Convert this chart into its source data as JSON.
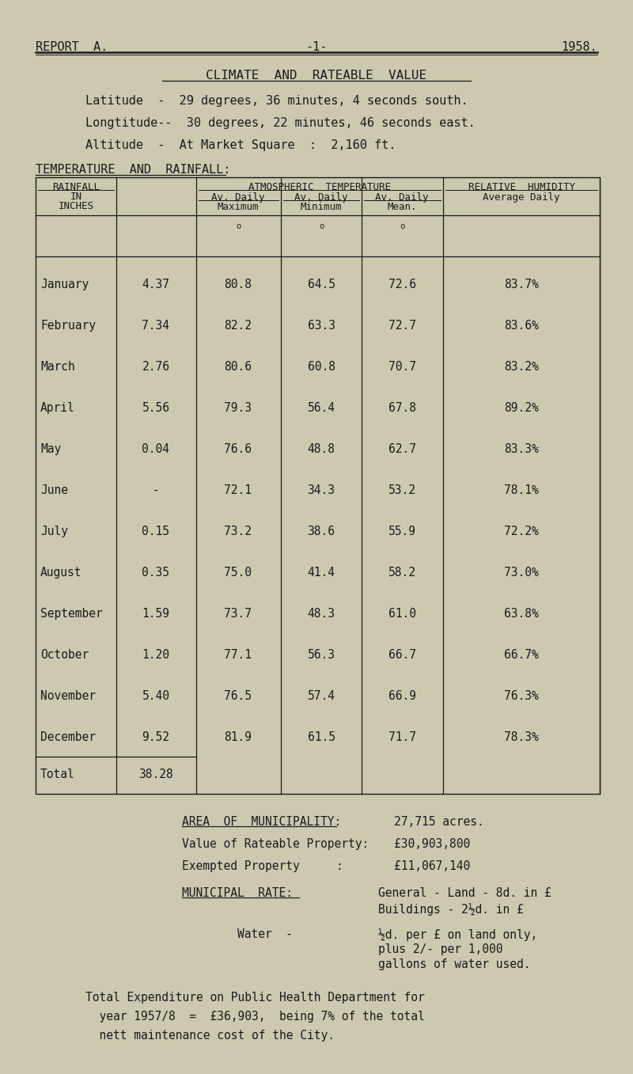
{
  "bg_color": "#ccc9b0",
  "text_color": "#1a1a1a",
  "header_left": "REPORT  A.",
  "header_center": "-1-",
  "header_right": "1958.",
  "title": "CLIMATE  AND  RATEABLE  VALUE",
  "latitude": "Latitude  -  29 degrees, 36 minutes, 4 seconds south.",
  "longitude": "Longtitude--  30 degrees, 22 minutes, 46 seconds east.",
  "altitude": "Altitude  -  At Market Square  :  2,160 ft.",
  "section_heading": "TEMPERATURE  AND  RAINFALL:",
  "months": [
    "January",
    "February",
    "March",
    "April",
    "May",
    "June",
    "July",
    "August",
    "September",
    "October",
    "November",
    "December",
    "Total"
  ],
  "rainfall": [
    "4.37",
    "7.34",
    "2.76",
    "5.56",
    "0.04",
    "-",
    "0.15",
    "0.35",
    "1.59",
    "1.20",
    "5.40",
    "9.52",
    "38.28"
  ],
  "av_max": [
    "80.8",
    "82.2",
    "80.6",
    "79.3",
    "76.6",
    "72.1",
    "73.2",
    "75.0",
    "73.7",
    "77.1",
    "76.5",
    "81.9",
    ""
  ],
  "av_min": [
    "64.5",
    "63.3",
    "60.8",
    "56.4",
    "48.8",
    "34.3",
    "38.6",
    "41.4",
    "48.3",
    "56.3",
    "57.4",
    "61.5",
    ""
  ],
  "av_mean": [
    "72.6",
    "72.7",
    "70.7",
    "67.8",
    "62.7",
    "53.2",
    "55.9",
    "58.2",
    "61.0",
    "66.7",
    "66.9",
    "71.7",
    ""
  ],
  "rel_humidity": [
    "83.7%",
    "83.6%",
    "83.2%",
    "89.2%",
    "83.3%",
    "78.1%",
    "72.2%",
    "73.0%",
    "63.8%",
    "66.7%",
    "76.3%",
    "78.3%",
    ""
  ],
  "area_label": "AREA  OF  MUNICIPALITY:",
  "area_value": "27,715 acres.",
  "rateable_label": "Value of Rateable Property:",
  "rateable_value": "£30,903,800",
  "exempted_label": "Exempted Property",
  "exempted_colon": ":",
  "exempted_value": "£11,067,140",
  "municipal_label": "MUNICIPAL  RATE:",
  "municipal_general": "General - Land - 8d. in £",
  "municipal_buildings": "Buildings - 2½d. in £",
  "water_label": "Water  -",
  "water_line1": "½d. per £ on land only,",
  "water_line2": "plus 2/- per 1,000",
  "water_line3": "gallons of water used.",
  "exp_line1": "Total Expenditure on Public Health Department for",
  "exp_line2": "  year 1957/8  =  £36,903,  being 7% of the total",
  "exp_line3": "  nett maintenance cost of the City."
}
